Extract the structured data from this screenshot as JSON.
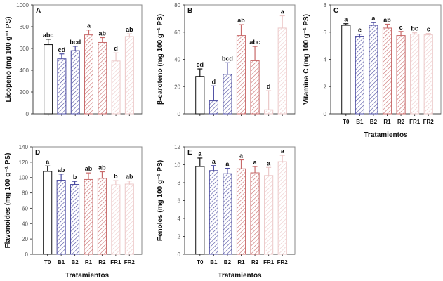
{
  "chart_data": [
    {
      "type": "bar",
      "panel": "A",
      "ylabel": "Licopeno (mg 100 g⁻¹ PS)",
      "xlabel": "",
      "ylim": [
        0,
        1000
      ],
      "yticks": [
        0,
        200,
        400,
        600,
        800,
        1000
      ],
      "show_xticklabels": false,
      "categories": [
        "T0",
        "B1",
        "B2",
        "R1",
        "R2",
        "FR1",
        "FR2"
      ],
      "values": [
        635,
        505,
        580,
        725,
        655,
        485,
        710
      ],
      "errors": [
        50,
        45,
        40,
        45,
        45,
        75,
        25
      ],
      "letters": [
        "abc",
        "cd",
        "bcd",
        "a",
        "ab",
        "d",
        "ab"
      ]
    },
    {
      "type": "bar",
      "panel": "B",
      "ylabel": "β-caroteno (mg 100 g⁻¹ PS)",
      "xlabel": "",
      "ylim": [
        0,
        80
      ],
      "yticks": [
        0,
        20,
        40,
        60,
        80
      ],
      "show_xticklabels": false,
      "categories": [
        "T0",
        "B1",
        "B2",
        "R1",
        "R2",
        "FR1",
        "FR2"
      ],
      "values": [
        27.5,
        9.5,
        29,
        57.5,
        39,
        3,
        63
      ],
      "errors": [
        5.5,
        11,
        8.5,
        8,
        10.5,
        14,
        9
      ],
      "letters": [
        "cd",
        "d",
        "bcd",
        "ab",
        "abc",
        "d",
        "a"
      ]
    },
    {
      "type": "bar",
      "panel": "C",
      "ylabel": "Vitamina C (mg 100 g⁻¹ PS)",
      "xlabel": "Tratamientos",
      "ylim": [
        0,
        8
      ],
      "yticks": [
        0,
        2,
        4,
        6,
        8
      ],
      "show_xticklabels": true,
      "categories": [
        "T0",
        "B1",
        "B2",
        "R1",
        "R2",
        "FR1",
        "FR2"
      ],
      "values": [
        6.5,
        5.7,
        6.5,
        6.3,
        5.75,
        5.85,
        5.8
      ],
      "errors": [
        0.12,
        0.15,
        0.2,
        0.28,
        0.3,
        0.1,
        0.1
      ],
      "letters": [
        "a",
        "c",
        "a",
        "ab",
        "c",
        "bc",
        "c"
      ]
    },
    {
      "type": "bar",
      "panel": "D",
      "ylabel": "Flavonoides (mg 100 g⁻¹ PS)",
      "xlabel": "Tratamientos",
      "ylim": [
        0,
        140
      ],
      "yticks": [
        0,
        20,
        40,
        60,
        80,
        100,
        120,
        140
      ],
      "show_xticklabels": true,
      "categories": [
        "T0",
        "B1",
        "B2",
        "R1",
        "R2",
        "FR1",
        "FR2"
      ],
      "values": [
        108,
        96.5,
        91,
        97.5,
        99,
        90.5,
        91.5
      ],
      "errors": [
        7,
        8,
        4,
        8.5,
        8.5,
        5.5,
        4
      ],
      "letters": [
        "a",
        "ab",
        "b",
        "ab",
        "ab",
        "b",
        "ab"
      ]
    },
    {
      "type": "bar",
      "panel": "E",
      "ylabel": "Fenoles (mg 100 g⁻¹ PS)",
      "xlabel": "Tratamientos",
      "ylim": [
        0,
        12
      ],
      "yticks": [
        0,
        2,
        4,
        6,
        8,
        10,
        12
      ],
      "show_xticklabels": true,
      "categories": [
        "T0",
        "B1",
        "B2",
        "R1",
        "R2",
        "FR1",
        "FR2"
      ],
      "values": [
        9.8,
        9.35,
        9.0,
        9.55,
        9.1,
        8.8,
        10.35
      ],
      "errors": [
        0.95,
        0.55,
        0.6,
        1.0,
        0.7,
        0.9,
        0.7
      ],
      "letters": [
        "a",
        "a",
        "a",
        "a",
        "a",
        "a",
        "a"
      ]
    }
  ],
  "series_colors": {
    "T0": "#111111",
    "B1": "#4b4ba0",
    "B2": "#4b4ba0",
    "R1": "#c86a6a",
    "R2": "#c86a6a",
    "FR1": "#ecc8c8",
    "FR2": "#ecc8c8"
  }
}
